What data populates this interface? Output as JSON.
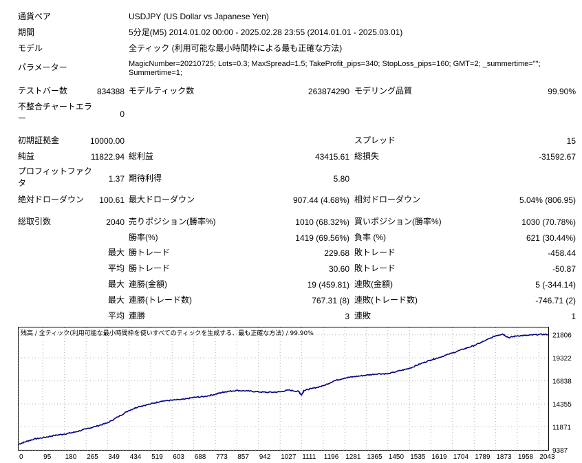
{
  "header": {
    "pair_label": "通貨ペア",
    "pair_value": "USDJPY (US Dollar vs Japanese Yen)",
    "period_label": "期間",
    "period_value": "5分足(M5) 2014.01.02 00:00 - 2025.02.28 23:55 (2014.01.01 - 2025.03.01)",
    "model_label": "モデル",
    "model_value": "全ティック (利用可能な最小時間枠による最も正確な方法)",
    "params_label": "パラメーター",
    "params_line1": "MagicNumber=20210725; Lots=0.3; MaxSpread=1.5; TakeProfit_pips=340; StopLoss_pips=160; GMT=2; _summertime=\"\";",
    "params_line2": "Summertime=1;"
  },
  "stats": {
    "bars_label": "テストバー数",
    "bars_value": "834388",
    "ticks_label": "モデルティック数",
    "ticks_value": "263874290",
    "quality_label": "モデリング品質",
    "quality_value": "99.90%",
    "mismatch_label_1": "不整合チャートエラ",
    "mismatch_label_2": "ー",
    "mismatch_value": "0",
    "deposit_label": "初期証拠金",
    "deposit_value": "10000.00",
    "spread_label": "スプレッド",
    "spread_value": "15",
    "net_label": "純益",
    "net_value": "11822.94",
    "gross_profit_label": "総利益",
    "gross_profit_value": "43415.61",
    "gross_loss_label": "総損失",
    "gross_loss_value": "-31592.67",
    "pf_label_1": "プロフィットファク",
    "pf_label_2": "タ",
    "pf_value": "1.37",
    "expected_label": "期待利得",
    "expected_value": "5.80",
    "abs_dd_label": "絶対ドローダウン",
    "abs_dd_value": "100.61",
    "max_dd_label": "最大ドローダウン",
    "max_dd_value": "907.44 (4.68%)",
    "rel_dd_label": "相対ドローダウン",
    "rel_dd_value": "5.04% (806.95)",
    "total_trades_label": "総取引数",
    "total_trades_value": "2040",
    "short_label": "売りポジション(勝率%)",
    "short_value": "1010 (68.32%)",
    "long_label": "買いポジション(勝率%)",
    "long_value": "1030 (70.78%)",
    "win_pct_label": "勝率(%)",
    "win_pct_value": "1419 (69.56%)",
    "loss_pct_label": "負率 (%)",
    "loss_pct_value": "621 (30.44%)",
    "max_word": "最大",
    "avg_word": "平均",
    "max_win_label": "勝トレード",
    "max_win_value": "229.68",
    "max_loss_label": "敗トレード",
    "max_loss_value": "-458.44",
    "avg_win_label": "勝トレード",
    "avg_win_value": "30.60",
    "avg_loss_label": "敗トレード",
    "avg_loss_value": "-50.87",
    "cons_win_amt_label": "連勝(金額)",
    "cons_win_amt_value": "19 (459.81)",
    "cons_loss_amt_label": "連敗(金額)",
    "cons_loss_amt_value": "5 (-344.14)",
    "cons_win_cnt_label": "連勝(トレード数)",
    "cons_win_cnt_value": "767.31 (8)",
    "cons_loss_cnt_label": "連敗(トレード数)",
    "cons_loss_cnt_value": "-746.71 (2)",
    "avg_cons_win_label": "連勝",
    "avg_cons_win_value": "3",
    "avg_cons_loss_label": "連敗",
    "avg_cons_loss_value": "1"
  },
  "chart_data": {
    "type": "line",
    "title": "残高 / 全ティック(利用可能な最小時間枠を使いすべてのティックを生成する、最も正確な方法) / 99.90%",
    "line_color": "#000080",
    "x_ticks": [
      0,
      95,
      180,
      265,
      349,
      434,
      519,
      603,
      688,
      773,
      857,
      942,
      1027,
      1111,
      1196,
      1281,
      1365,
      1450,
      1535,
      1619,
      1704,
      1789,
      1873,
      1958,
      2043
    ],
    "y_ticks": [
      9387,
      11871,
      14355,
      16838,
      19322,
      21806
    ],
    "xlim": [
      0,
      2080
    ],
    "ylim": [
      9387,
      22600
    ],
    "x": [
      0,
      30,
      60,
      95,
      140,
      180,
      220,
      265,
      300,
      349,
      390,
      434,
      470,
      519,
      560,
      603,
      650,
      688,
      730,
      773,
      800,
      820,
      857,
      900,
      942,
      980,
      1027,
      1060,
      1100,
      1111,
      1120,
      1150,
      1196,
      1240,
      1281,
      1320,
      1365,
      1410,
      1450,
      1500,
      1535,
      1580,
      1619,
      1650,
      1704,
      1750,
      1789,
      1830,
      1873,
      1900,
      1925,
      1958,
      2000,
      2043,
      2080
    ],
    "y": [
      10000,
      10300,
      10550,
      10700,
      10950,
      11100,
      11300,
      11650,
      11900,
      12300,
      12950,
      13650,
      14050,
      14350,
      14650,
      14750,
      14850,
      15050,
      15150,
      15400,
      15600,
      15700,
      15800,
      15750,
      15650,
      15600,
      15650,
      15850,
      15700,
      15300,
      15800,
      16000,
      16300,
      16850,
      17150,
      17300,
      17450,
      17600,
      17600,
      17950,
      18200,
      18700,
      19100,
      19350,
      19850,
      20300,
      20650,
      21150,
      21700,
      21900,
      21500,
      21700,
      21750,
      21850,
      21850
    ]
  }
}
